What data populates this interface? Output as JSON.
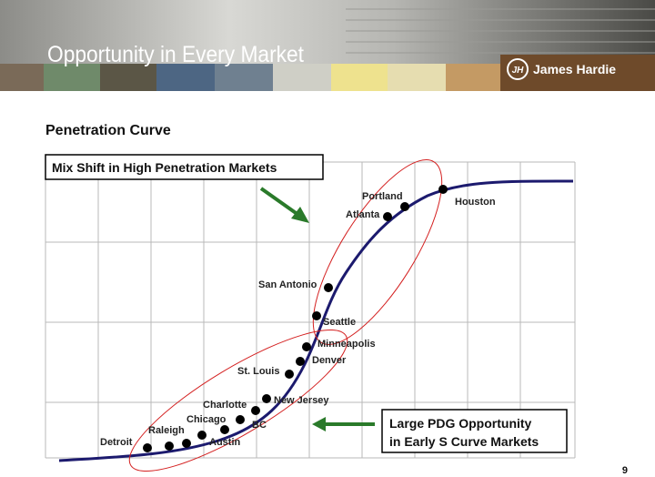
{
  "header": {
    "title": "Opportunity in Every Market",
    "logo_mark": "JH",
    "brand": "James Hardie"
  },
  "subtitle": "Penetration Curve",
  "callouts": {
    "top": "Mix Shift in High Penetration Markets",
    "bottom": [
      "Large PDG Opportunity",
      "in Early S Curve Markets"
    ]
  },
  "markets": [
    "Detroit",
    "Raleigh",
    "Austin",
    "Chicago",
    "BC",
    "Charlotte",
    "New Jersey",
    "St. Louis",
    "Denver",
    "Minneapolis",
    "Seattle",
    "San Antonio",
    "Atlanta",
    "Portland",
    "Houston"
  ],
  "page_number": "9"
}
